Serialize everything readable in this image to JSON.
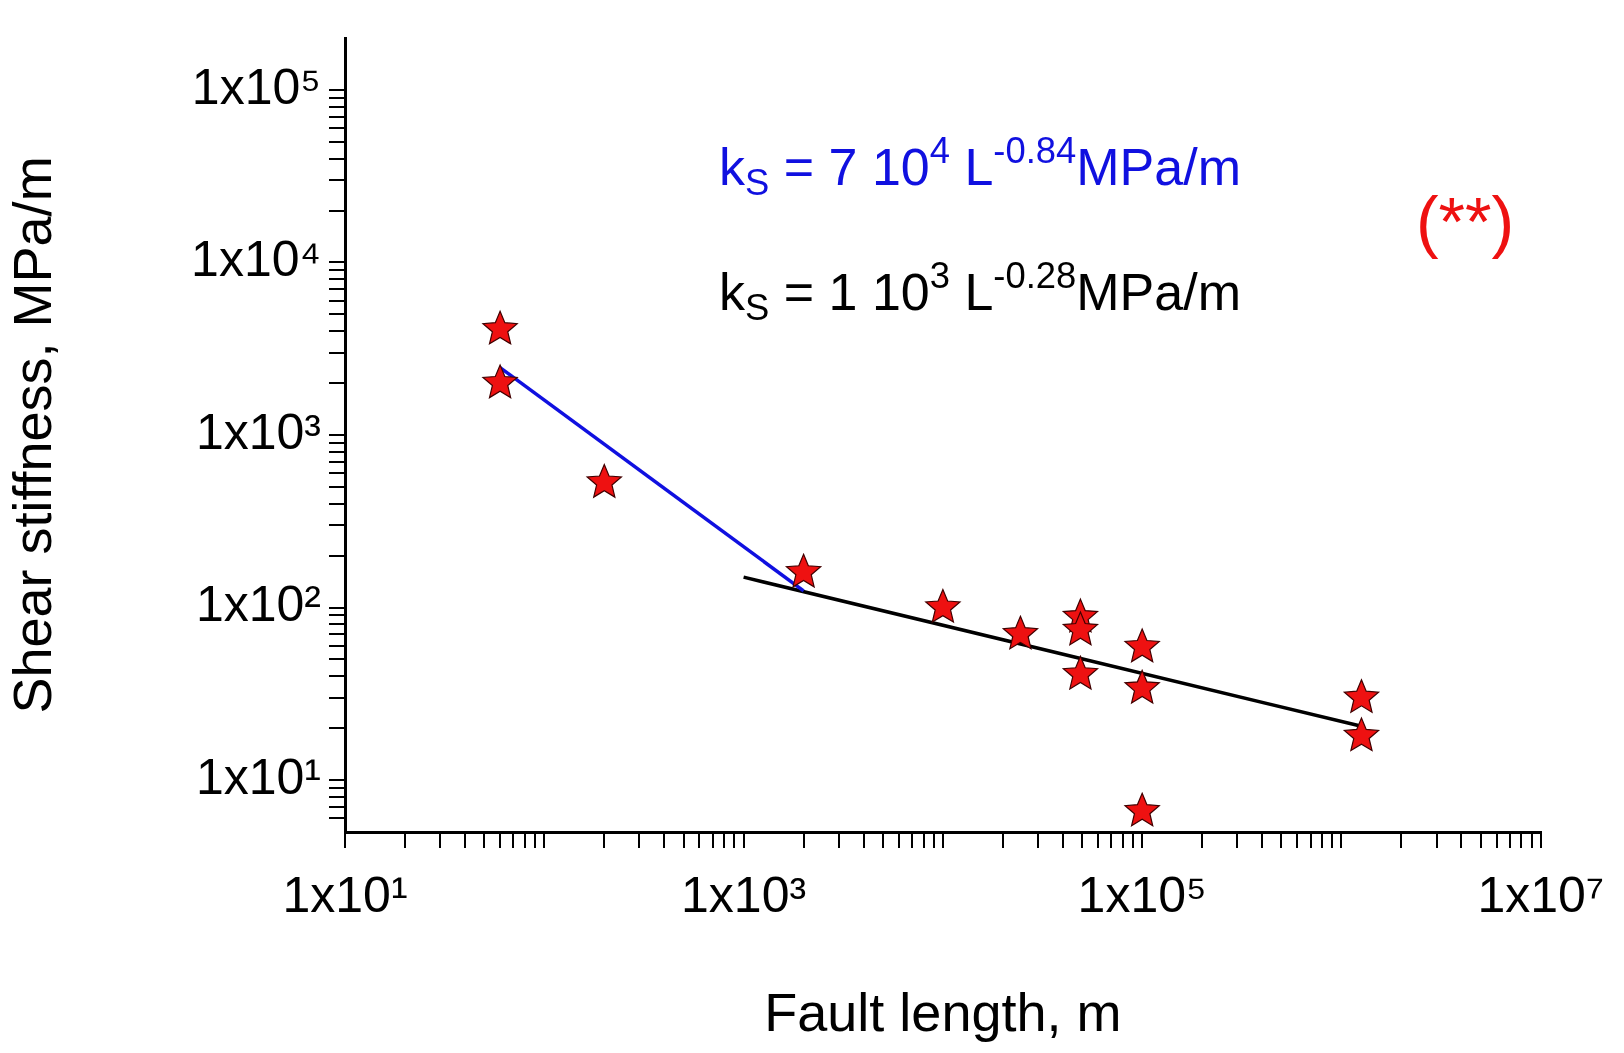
{
  "chart_data": {
    "type": "scatter",
    "xlabel": "Fault length, m",
    "ylabel": "Shear stiffness, MPa/m",
    "log": "xy",
    "legend": false,
    "xlim": [
      10,
      10000000
    ],
    "ylim": [
      5,
      200000
    ],
    "xticks": [
      {
        "value": 10,
        "label": "1x10¹"
      },
      {
        "value": 20,
        "label": null
      },
      {
        "value": 30,
        "label": null
      },
      {
        "value": 40,
        "label": null
      },
      {
        "value": 50,
        "label": null
      },
      {
        "value": 60,
        "label": null
      },
      {
        "value": 70,
        "label": null
      },
      {
        "value": 80,
        "label": null
      },
      {
        "value": 90,
        "label": null
      },
      {
        "value": 100,
        "label": null
      },
      {
        "value": 200,
        "label": null
      },
      {
        "value": 300,
        "label": null
      },
      {
        "value": 400,
        "label": null
      },
      {
        "value": 500,
        "label": null
      },
      {
        "value": 600,
        "label": null
      },
      {
        "value": 700,
        "label": null
      },
      {
        "value": 800,
        "label": null
      },
      {
        "value": 900,
        "label": null
      },
      {
        "value": 1000,
        "label": "1x10³"
      },
      {
        "value": 2000,
        "label": null
      },
      {
        "value": 3000,
        "label": null
      },
      {
        "value": 4000,
        "label": null
      },
      {
        "value": 5000,
        "label": null
      },
      {
        "value": 6000,
        "label": null
      },
      {
        "value": 7000,
        "label": null
      },
      {
        "value": 8000,
        "label": null
      },
      {
        "value": 9000,
        "label": null
      },
      {
        "value": 10000,
        "label": null
      },
      {
        "value": 20000,
        "label": null
      },
      {
        "value": 30000,
        "label": null
      },
      {
        "value": 40000,
        "label": null
      },
      {
        "value": 50000,
        "label": null
      },
      {
        "value": 60000,
        "label": null
      },
      {
        "value": 70000,
        "label": null
      },
      {
        "value": 80000,
        "label": null
      },
      {
        "value": 90000,
        "label": null
      },
      {
        "value": 100000,
        "label": "1x10⁵"
      },
      {
        "value": 200000,
        "label": null
      },
      {
        "value": 300000,
        "label": null
      },
      {
        "value": 400000,
        "label": null
      },
      {
        "value": 500000,
        "label": null
      },
      {
        "value": 600000,
        "label": null
      },
      {
        "value": 700000,
        "label": null
      },
      {
        "value": 800000,
        "label": null
      },
      {
        "value": 900000,
        "label": null
      },
      {
        "value": 1000000,
        "label": null
      },
      {
        "value": 2000000,
        "label": null
      },
      {
        "value": 3000000,
        "label": null
      },
      {
        "value": 4000000,
        "label": null
      },
      {
        "value": 5000000,
        "label": null
      },
      {
        "value": 6000000,
        "label": null
      },
      {
        "value": 7000000,
        "label": null
      },
      {
        "value": 8000000,
        "label": null
      },
      {
        "value": 9000000,
        "label": null
      },
      {
        "value": 10000000,
        "label": "1x10⁷"
      }
    ],
    "yticks": [
      {
        "value": 6,
        "label": null
      },
      {
        "value": 7,
        "label": null
      },
      {
        "value": 8,
        "label": null
      },
      {
        "value": 9,
        "label": null
      },
      {
        "value": 10,
        "label": "1x10¹"
      },
      {
        "value": 20,
        "label": null
      },
      {
        "value": 30,
        "label": null
      },
      {
        "value": 40,
        "label": null
      },
      {
        "value": 50,
        "label": null
      },
      {
        "value": 60,
        "label": null
      },
      {
        "value": 70,
        "label": null
      },
      {
        "value": 80,
        "label": null
      },
      {
        "value": 90,
        "label": null
      },
      {
        "value": 100,
        "label": "1x10²"
      },
      {
        "value": 200,
        "label": null
      },
      {
        "value": 300,
        "label": null
      },
      {
        "value": 400,
        "label": null
      },
      {
        "value": 500,
        "label": null
      },
      {
        "value": 600,
        "label": null
      },
      {
        "value": 700,
        "label": null
      },
      {
        "value": 800,
        "label": null
      },
      {
        "value": 900,
        "label": null
      },
      {
        "value": 1000,
        "label": "1x10³"
      },
      {
        "value": 2000,
        "label": null
      },
      {
        "value": 3000,
        "label": null
      },
      {
        "value": 4000,
        "label": null
      },
      {
        "value": 5000,
        "label": null
      },
      {
        "value": 6000,
        "label": null
      },
      {
        "value": 7000,
        "label": null
      },
      {
        "value": 8000,
        "label": null
      },
      {
        "value": 9000,
        "label": null
      },
      {
        "value": 10000,
        "label": "1x10⁴"
      },
      {
        "value": 20000,
        "label": null
      },
      {
        "value": 30000,
        "label": null
      },
      {
        "value": 40000,
        "label": null
      },
      {
        "value": 50000,
        "label": null
      },
      {
        "value": 60000,
        "label": null
      },
      {
        "value": 70000,
        "label": null
      },
      {
        "value": 80000,
        "label": null
      },
      {
        "value": 90000,
        "label": null
      },
      {
        "value": 100000,
        "label": "1x10⁵"
      }
    ],
    "series": [
      {
        "color": "#ee1111",
        "marker": "star",
        "x": [
          60,
          60,
          200,
          2000,
          10000,
          24500,
          49000,
          49000,
          49000,
          100000,
          100000,
          100000,
          1260000,
          1260000
        ],
        "values": [
          4100,
          2000,
          530,
          160,
          100,
          70,
          88,
          74,
          41,
          59,
          34,
          6.6,
          30,
          18
        ]
      },
      {
        "type": "line",
        "name": "k$_{S}$ = 7 10$^{4}$ L$^{-0.84}$MPa/m",
        "color": "#1010e0",
        "x": [
          60,
          2000
        ],
        "values": [
          2460,
          125
        ]
      },
      {
        "type": "line",
        "name": "k$_{S}$ = 1 10$^{3}$ L$^{-0.28}$MPa/m",
        "color": "#000000",
        "x": [
          1000,
          1260000
        ],
        "values": [
          150,
          20.5
        ]
      }
    ],
    "annotations": [
      "(**)"
    ]
  }
}
